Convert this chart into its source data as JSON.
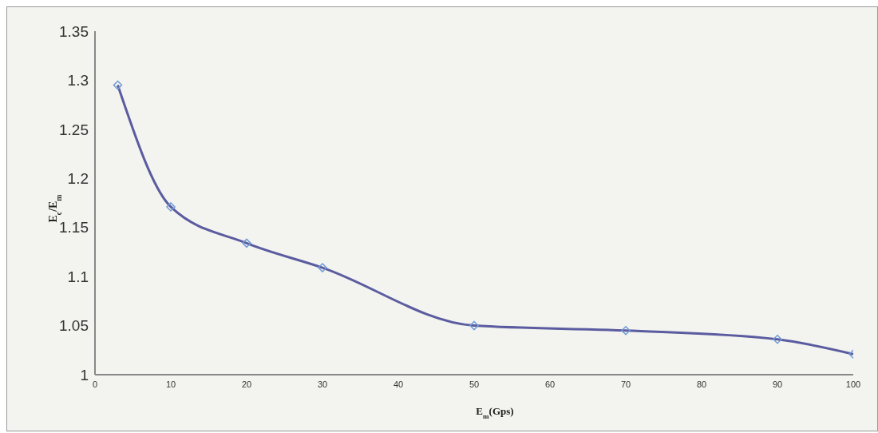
{
  "chart_data": {
    "type": "line",
    "xlabel": "E$_{m}$(Gps)",
    "ylabel": "E$_{c}$/E$_{m}$",
    "x": [
      3,
      10,
      20,
      30,
      50,
      70,
      90,
      100
    ],
    "series": [
      {
        "color": "#5b5ba0",
        "values": [
          1.295,
          1.171,
          1.134,
          1.109,
          1.05,
          1.045,
          1.036,
          1.021
        ]
      }
    ],
    "xlim": [
      0,
      100
    ],
    "xticks": [
      0,
      10,
      20,
      30,
      40,
      50,
      60,
      70,
      80,
      90,
      100
    ],
    "ylim": [
      1,
      1.35
    ],
    "yticks": [
      1,
      1.05,
      1.1,
      1.15,
      1.2,
      1.25,
      1.3,
      1.35
    ],
    "grid": false,
    "legend": false,
    "marker": "diamond",
    "line_style": "solid"
  }
}
